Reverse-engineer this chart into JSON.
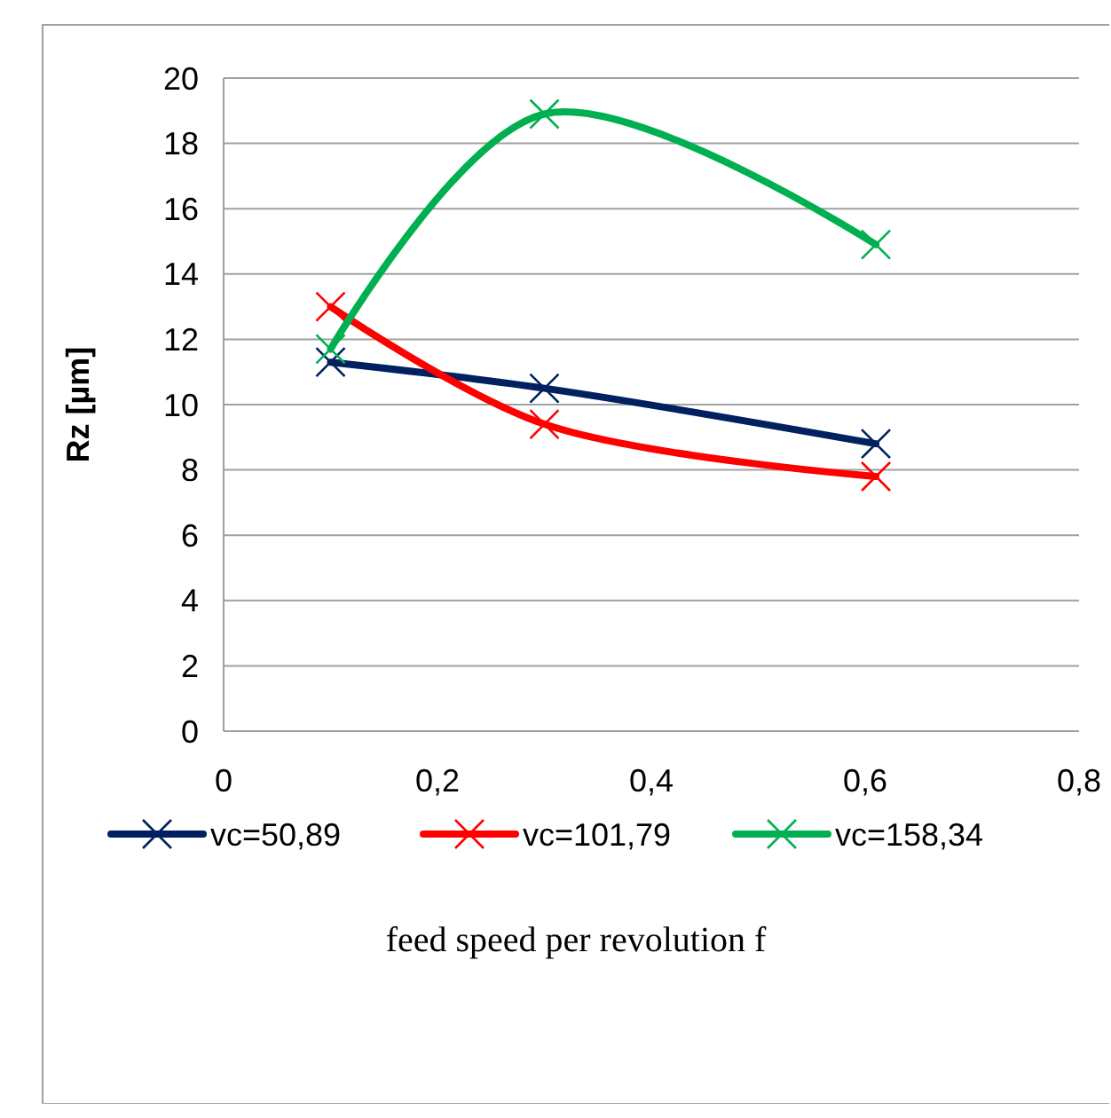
{
  "chart_data": {
    "type": "line",
    "ylabel": "Rz [µm]",
    "xlabel": "feed speed per revolution f",
    "xlim": [
      0,
      0.8
    ],
    "xticks": [
      {
        "value": 0,
        "label": "0"
      },
      {
        "value": 0.2,
        "label": "0,2"
      },
      {
        "value": 0.4,
        "label": "0,4"
      },
      {
        "value": 0.6,
        "label": "0,6"
      },
      {
        "value": 0.8,
        "label": "0,8"
      }
    ],
    "ylim": [
      0,
      20
    ],
    "yticks": [
      0,
      2,
      4,
      6,
      8,
      10,
      12,
      14,
      16,
      18,
      20
    ],
    "grid": "y",
    "legend": "bottom",
    "marker": "cross",
    "x": [
      0.1,
      0.3,
      0.61
    ],
    "series": [
      {
        "name": "vc=50,89",
        "color": "#002060",
        "values": [
          11.3,
          10.5,
          8.8
        ]
      },
      {
        "name": "vc=101,79",
        "color": "#ff0000",
        "values": [
          13,
          9.4,
          7.8
        ]
      },
      {
        "name": "vc=158,34",
        "color": "#00b050",
        "values": [
          11.7,
          18.9,
          14.9
        ]
      }
    ]
  }
}
